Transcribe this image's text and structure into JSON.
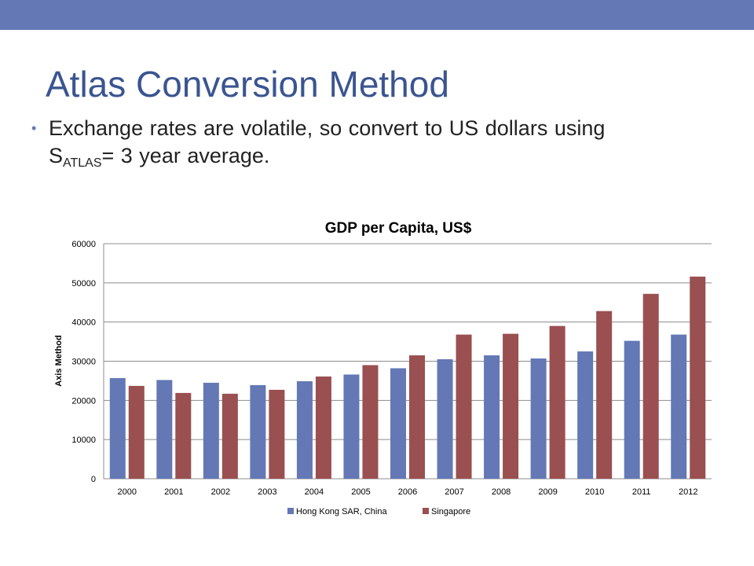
{
  "slide": {
    "title": "Atlas Conversion Method",
    "bullet": {
      "text_before": "Exchange rates are volatile, so convert to US dollars using S",
      "subscript": "ATLAS",
      "text_after": "= 3 year average."
    },
    "accent_color": "#6378b5",
    "title_color": "#3a5590"
  },
  "chart_data": {
    "type": "bar",
    "title": "GDP per Capita, US$",
    "xlabel": "",
    "ylabel": "Axis Method",
    "ylim": [
      0,
      60000
    ],
    "yticks": [
      0,
      10000,
      20000,
      30000,
      40000,
      50000,
      60000
    ],
    "grid": true,
    "legend_position": "bottom",
    "categories": [
      "2000",
      "2001",
      "2002",
      "2003",
      "2004",
      "2005",
      "2006",
      "2007",
      "2008",
      "2009",
      "2010",
      "2011",
      "2012"
    ],
    "series": [
      {
        "name": "Hong Kong SAR, China",
        "color": "#6378b5",
        "values": [
          25700,
          25200,
          24500,
          23900,
          24900,
          26600,
          28200,
          30500,
          31500,
          30700,
          32500,
          35200,
          36800
        ]
      },
      {
        "name": "Singapore",
        "color": "#9a4f50",
        "values": [
          23700,
          21900,
          21700,
          22700,
          26100,
          29000,
          31500,
          36800,
          37000,
          39000,
          42800,
          47200,
          51600
        ]
      }
    ]
  }
}
